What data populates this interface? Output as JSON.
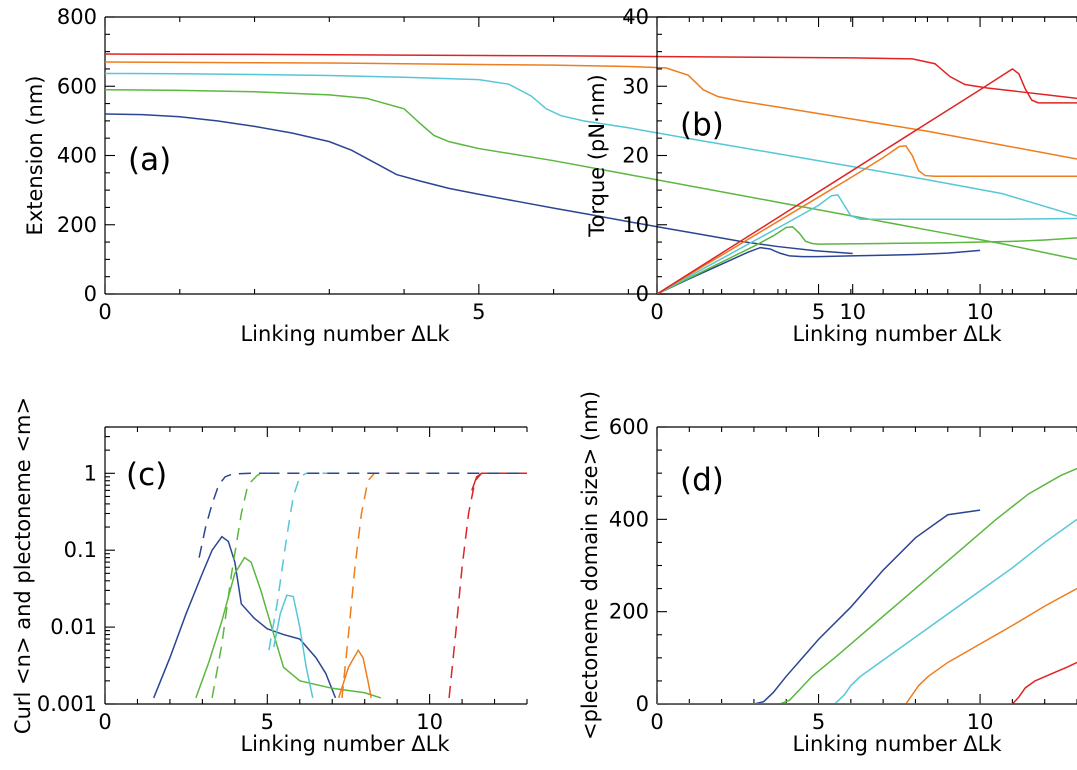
{
  "colors": {
    "s1": "#2b4593",
    "s2": "#5bb73f",
    "s3": "#56c7d6",
    "s4": "#ee7d1e",
    "s5": "#e02424"
  },
  "chart_data": [
    {
      "type": "line",
      "panel_label": "(a)",
      "xlabel": "Linking number ΔLk",
      "ylabel": "Extension (nm)",
      "xlim": [
        0,
        13
      ],
      "ylim": [
        0,
        800
      ],
      "xticks": [
        0,
        5,
        10
      ],
      "yticks": [
        0,
        200,
        400,
        600,
        800
      ],
      "series": [
        {
          "color_key": "s1",
          "x": [
            0,
            0.5,
            1,
            1.5,
            2,
            2.5,
            3,
            3.3,
            3.6,
            3.9,
            4.2,
            4.6,
            5,
            5.5,
            6,
            6.5,
            7,
            7.5,
            8,
            8.5,
            9,
            9.5,
            10
          ],
          "y": [
            520,
            518,
            512,
            500,
            484,
            465,
            440,
            415,
            380,
            345,
            327,
            305,
            288,
            268,
            248,
            229,
            209,
            190,
            171,
            152,
            137,
            125,
            117
          ]
        },
        {
          "color_key": "s2",
          "x": [
            0,
            1,
            2,
            3,
            3.5,
            4,
            4.2,
            4.4,
            4.6,
            4.8,
            5,
            6,
            7,
            8,
            9,
            10,
            11,
            12,
            13
          ],
          "y": [
            590,
            588,
            584,
            575,
            565,
            535,
            495,
            458,
            440,
            430,
            420,
            385,
            345,
            305,
            265,
            225,
            185,
            145,
            100
          ]
        },
        {
          "color_key": "s3",
          "x": [
            0,
            1,
            2,
            3,
            4,
            5,
            5.4,
            5.7,
            5.9,
            6.1,
            6.4,
            7,
            8,
            9,
            10,
            11,
            12,
            13
          ],
          "y": [
            637,
            636,
            634,
            631,
            626,
            619,
            606,
            572,
            535,
            515,
            500,
            480,
            442,
            405,
            368,
            330,
            290,
            225
          ]
        },
        {
          "color_key": "s4",
          "x": [
            0,
            1,
            2,
            3,
            4,
            5,
            6,
            7,
            7.5,
            7.8,
            8,
            8.2,
            8.5,
            9,
            10,
            11,
            12,
            13
          ],
          "y": [
            670,
            669,
            668,
            667,
            665,
            663,
            661,
            657,
            653,
            632,
            590,
            570,
            557,
            540,
            505,
            470,
            430,
            390
          ]
        },
        {
          "color_key": "s5",
          "x": [
            0,
            2,
            4,
            6,
            8,
            10,
            10.8,
            11.1,
            11.3,
            11.5,
            11.8,
            12.2,
            12.6,
            13
          ],
          "y": [
            693,
            692,
            690,
            688,
            685,
            682,
            679,
            665,
            628,
            605,
            595,
            585,
            575,
            565
          ]
        }
      ]
    },
    {
      "type": "line",
      "panel_label": "(b)",
      "xlabel": "Linking number ΔLk",
      "ylabel": "Torque (pN·nm)",
      "xlim": [
        0,
        13
      ],
      "ylim": [
        0,
        40
      ],
      "xticks": [
        0,
        5,
        10
      ],
      "yticks": [
        0,
        10,
        20,
        30,
        40
      ],
      "series": [
        {
          "color_key": "s1",
          "x": [
            0,
            1,
            2,
            2.8,
            3.2,
            3.5,
            3.8,
            4.1,
            4.5,
            5,
            6,
            7,
            8,
            9,
            10
          ],
          "y": [
            0,
            2.2,
            4.3,
            6,
            6.7,
            6.5,
            5.9,
            5.5,
            5.4,
            5.4,
            5.5,
            5.6,
            5.7,
            5.9,
            6.3
          ]
        },
        {
          "color_key": "s2",
          "x": [
            0,
            1,
            2,
            3,
            3.6,
            4,
            4.2,
            4.4,
            4.6,
            4.8,
            5,
            7,
            9,
            11,
            12,
            13
          ],
          "y": [
            0,
            2.3,
            4.6,
            6.9,
            8.4,
            9.6,
            9.7,
            8.8,
            7.6,
            7.3,
            7.2,
            7.3,
            7.4,
            7.6,
            7.8,
            8.1
          ]
        },
        {
          "color_key": "s3",
          "x": [
            0,
            1,
            2,
            3,
            4,
            5,
            5.4,
            5.6,
            5.8,
            6,
            6.3,
            7,
            9,
            11,
            13
          ],
          "y": [
            0,
            2.55,
            5.1,
            7.65,
            10.2,
            12.8,
            14.2,
            14.3,
            12.8,
            11.3,
            10.8,
            10.8,
            10.8,
            10.8,
            10.9
          ]
        },
        {
          "color_key": "s4",
          "x": [
            0,
            1,
            2,
            3,
            4,
            5,
            6,
            7,
            7.5,
            7.7,
            7.9,
            8.1,
            8.3,
            8.6,
            9,
            11,
            13
          ],
          "y": [
            0,
            2.8,
            5.6,
            8.4,
            11.2,
            14,
            16.8,
            19.7,
            21.3,
            21.4,
            20,
            17.8,
            17.1,
            17,
            17,
            17,
            17
          ]
        },
        {
          "color_key": "s5",
          "x": [
            0,
            2,
            4,
            6,
            8,
            10,
            10.8,
            11,
            11.2,
            11.4,
            11.6,
            11.8,
            12.2,
            13
          ],
          "y": [
            0,
            5.9,
            11.8,
            17.7,
            23.6,
            29.5,
            31.9,
            32.5,
            31.8,
            29.6,
            28,
            27.6,
            27.6,
            27.6
          ]
        }
      ]
    },
    {
      "type": "line",
      "panel_label": "(c)",
      "xlabel": "Linking number ΔLk",
      "ylabel": "Curl <n> and plectoneme <m>",
      "xlim": [
        0,
        13
      ],
      "ylim": [
        0.001,
        4
      ],
      "yscale": "log",
      "xticks": [
        0,
        5,
        10
      ],
      "yticks": [
        0.001,
        0.01,
        0.1,
        1
      ],
      "ytick_labels": [
        "0.001",
        "0.01",
        "0.1",
        "1"
      ],
      "series": [
        {
          "color_key": "s1",
          "style": "solid",
          "x": [
            1.5,
            2,
            2.5,
            3,
            3.3,
            3.6,
            3.8,
            4,
            4.2,
            4.6,
            5,
            5.5,
            6,
            6.5,
            6.8,
            7.1
          ],
          "y": [
            0.0012,
            0.004,
            0.015,
            0.05,
            0.1,
            0.15,
            0.13,
            0.07,
            0.02,
            0.013,
            0.0095,
            0.008,
            0.007,
            0.004,
            0.0025,
            0.0012
          ]
        },
        {
          "color_key": "s1",
          "style": "dashed",
          "x": [
            2.9,
            3.1,
            3.3,
            3.5,
            3.7,
            3.9,
            4.2,
            4.5,
            5
          ],
          "y": [
            0.08,
            0.2,
            0.4,
            0.7,
            0.9,
            0.97,
            0.99,
            1,
            1
          ]
        },
        {
          "color_key": "s2",
          "style": "solid",
          "x": [
            2.8,
            3.2,
            3.6,
            4,
            4.3,
            4.5,
            4.8,
            5.2,
            5.5,
            6,
            7,
            8,
            8.5
          ],
          "y": [
            0.0012,
            0.0035,
            0.012,
            0.05,
            0.08,
            0.07,
            0.03,
            0.008,
            0.003,
            0.002,
            0.0016,
            0.0014,
            0.0012
          ]
        },
        {
          "color_key": "s2",
          "style": "dashed",
          "x": [
            3.3,
            3.6,
            3.9,
            4.2,
            4.4,
            4.7,
            5,
            6
          ],
          "y": [
            0.0012,
            0.006,
            0.05,
            0.3,
            0.7,
            0.95,
            1,
            1
          ]
        },
        {
          "color_key": "s3",
          "style": "solid",
          "x": [
            5.2,
            5.4,
            5.6,
            5.8,
            6,
            6.2,
            6.4
          ],
          "y": [
            0.0055,
            0.015,
            0.026,
            0.025,
            0.01,
            0.003,
            0.0012
          ]
        },
        {
          "color_key": "s3",
          "style": "dashed",
          "x": [
            5.05,
            5.3,
            5.6,
            5.8,
            6,
            6.2,
            7
          ],
          "y": [
            0.005,
            0.02,
            0.15,
            0.5,
            0.9,
            1,
            1
          ]
        },
        {
          "color_key": "s4",
          "style": "solid",
          "x": [
            7.2,
            7.5,
            7.8,
            7.95,
            8.1,
            8.2
          ],
          "y": [
            0.0012,
            0.003,
            0.005,
            0.004,
            0.002,
            0.0012
          ]
        },
        {
          "color_key": "s4",
          "style": "dashed",
          "x": [
            7.3,
            7.5,
            7.7,
            7.9,
            8.1,
            8.3,
            9,
            10
          ],
          "y": [
            0.0012,
            0.008,
            0.06,
            0.3,
            0.8,
            1,
            1,
            1
          ]
        },
        {
          "color_key": "s5",
          "style": "solid",
          "x": [
            11.3,
            11.45,
            11.6,
            11.8,
            12.2,
            13
          ],
          "y": [
            0.6,
            0.9,
            1,
            1,
            1,
            1
          ]
        },
        {
          "color_key": "s5",
          "style": "dashed",
          "x": [
            10.6,
            10.8,
            11,
            11.2,
            11.4,
            11.6
          ],
          "y": [
            0.0012,
            0.008,
            0.06,
            0.3,
            0.8,
            1
          ]
        },
        {
          "color_key": "s1",
          "style": "dashed",
          "x": [
            5,
            6,
            7,
            8,
            9,
            10,
            11,
            12,
            13
          ],
          "y": [
            1,
            1,
            1,
            1,
            1,
            1,
            1,
            1,
            1
          ]
        }
      ]
    },
    {
      "type": "line",
      "panel_label": "(d)",
      "xlabel": "Linking number ΔLk",
      "ylabel": "<plectoneme domain size> (nm)",
      "xlim": [
        0,
        13
      ],
      "ylim": [
        0,
        600
      ],
      "xticks": [
        0,
        5,
        10
      ],
      "yticks": [
        0,
        200,
        400,
        600
      ],
      "series": [
        {
          "color_key": "s1",
          "x": [
            0,
            3,
            3.3,
            3.6,
            4,
            4.5,
            5,
            6,
            7,
            8,
            9,
            10
          ],
          "y": [
            0,
            0,
            5,
            25,
            60,
            100,
            140,
            210,
            290,
            360,
            410,
            420
          ]
        },
        {
          "color_key": "s2",
          "x": [
            0,
            3.8,
            4.1,
            4.4,
            4.8,
            5.5,
            6.5,
            7.5,
            8.5,
            9.5,
            10.5,
            11.5,
            12.5,
            13
          ],
          "y": [
            0,
            0,
            8,
            30,
            60,
            100,
            160,
            220,
            280,
            340,
            400,
            455,
            495,
            510
          ]
        },
        {
          "color_key": "s3",
          "x": [
            0,
            5.5,
            5.8,
            6,
            6.3,
            7,
            8,
            9,
            10,
            11,
            12,
            13
          ],
          "y": [
            0,
            0,
            20,
            40,
            60,
            95,
            145,
            195,
            245,
            295,
            350,
            400
          ]
        },
        {
          "color_key": "s4",
          "x": [
            0,
            7.7,
            7.9,
            8.1,
            8.4,
            9,
            10,
            11,
            12,
            13
          ],
          "y": [
            0,
            0,
            20,
            40,
            60,
            90,
            130,
            170,
            212,
            250
          ]
        },
        {
          "color_key": "s5",
          "x": [
            0,
            11,
            11.2,
            11.4,
            11.7,
            12.2,
            12.7,
            13
          ],
          "y": [
            0,
            0,
            15,
            35,
            50,
            65,
            80,
            90
          ]
        }
      ]
    }
  ]
}
